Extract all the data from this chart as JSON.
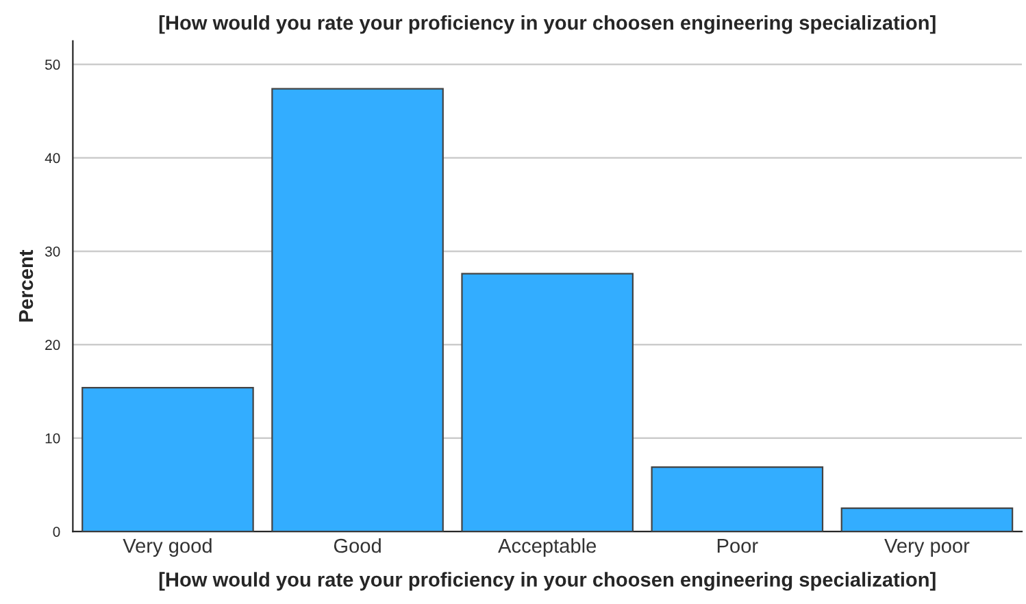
{
  "chart_data": {
    "type": "bar",
    "title": "[How would you rate your proficiency in your choosen engineering specialization]",
    "xlabel": "[How would you rate your proficiency in your choosen engineering specialization]",
    "ylabel": "Percent",
    "categories": [
      "Very good",
      "Good",
      "Acceptable",
      "Poor",
      "Very poor"
    ],
    "values": [
      15.4,
      47.4,
      27.6,
      6.9,
      2.5
    ],
    "color": "#33adff",
    "ylim": [
      0,
      52.5
    ],
    "yticks": [
      0,
      10,
      20,
      30,
      40,
      50
    ],
    "grid": "y"
  }
}
